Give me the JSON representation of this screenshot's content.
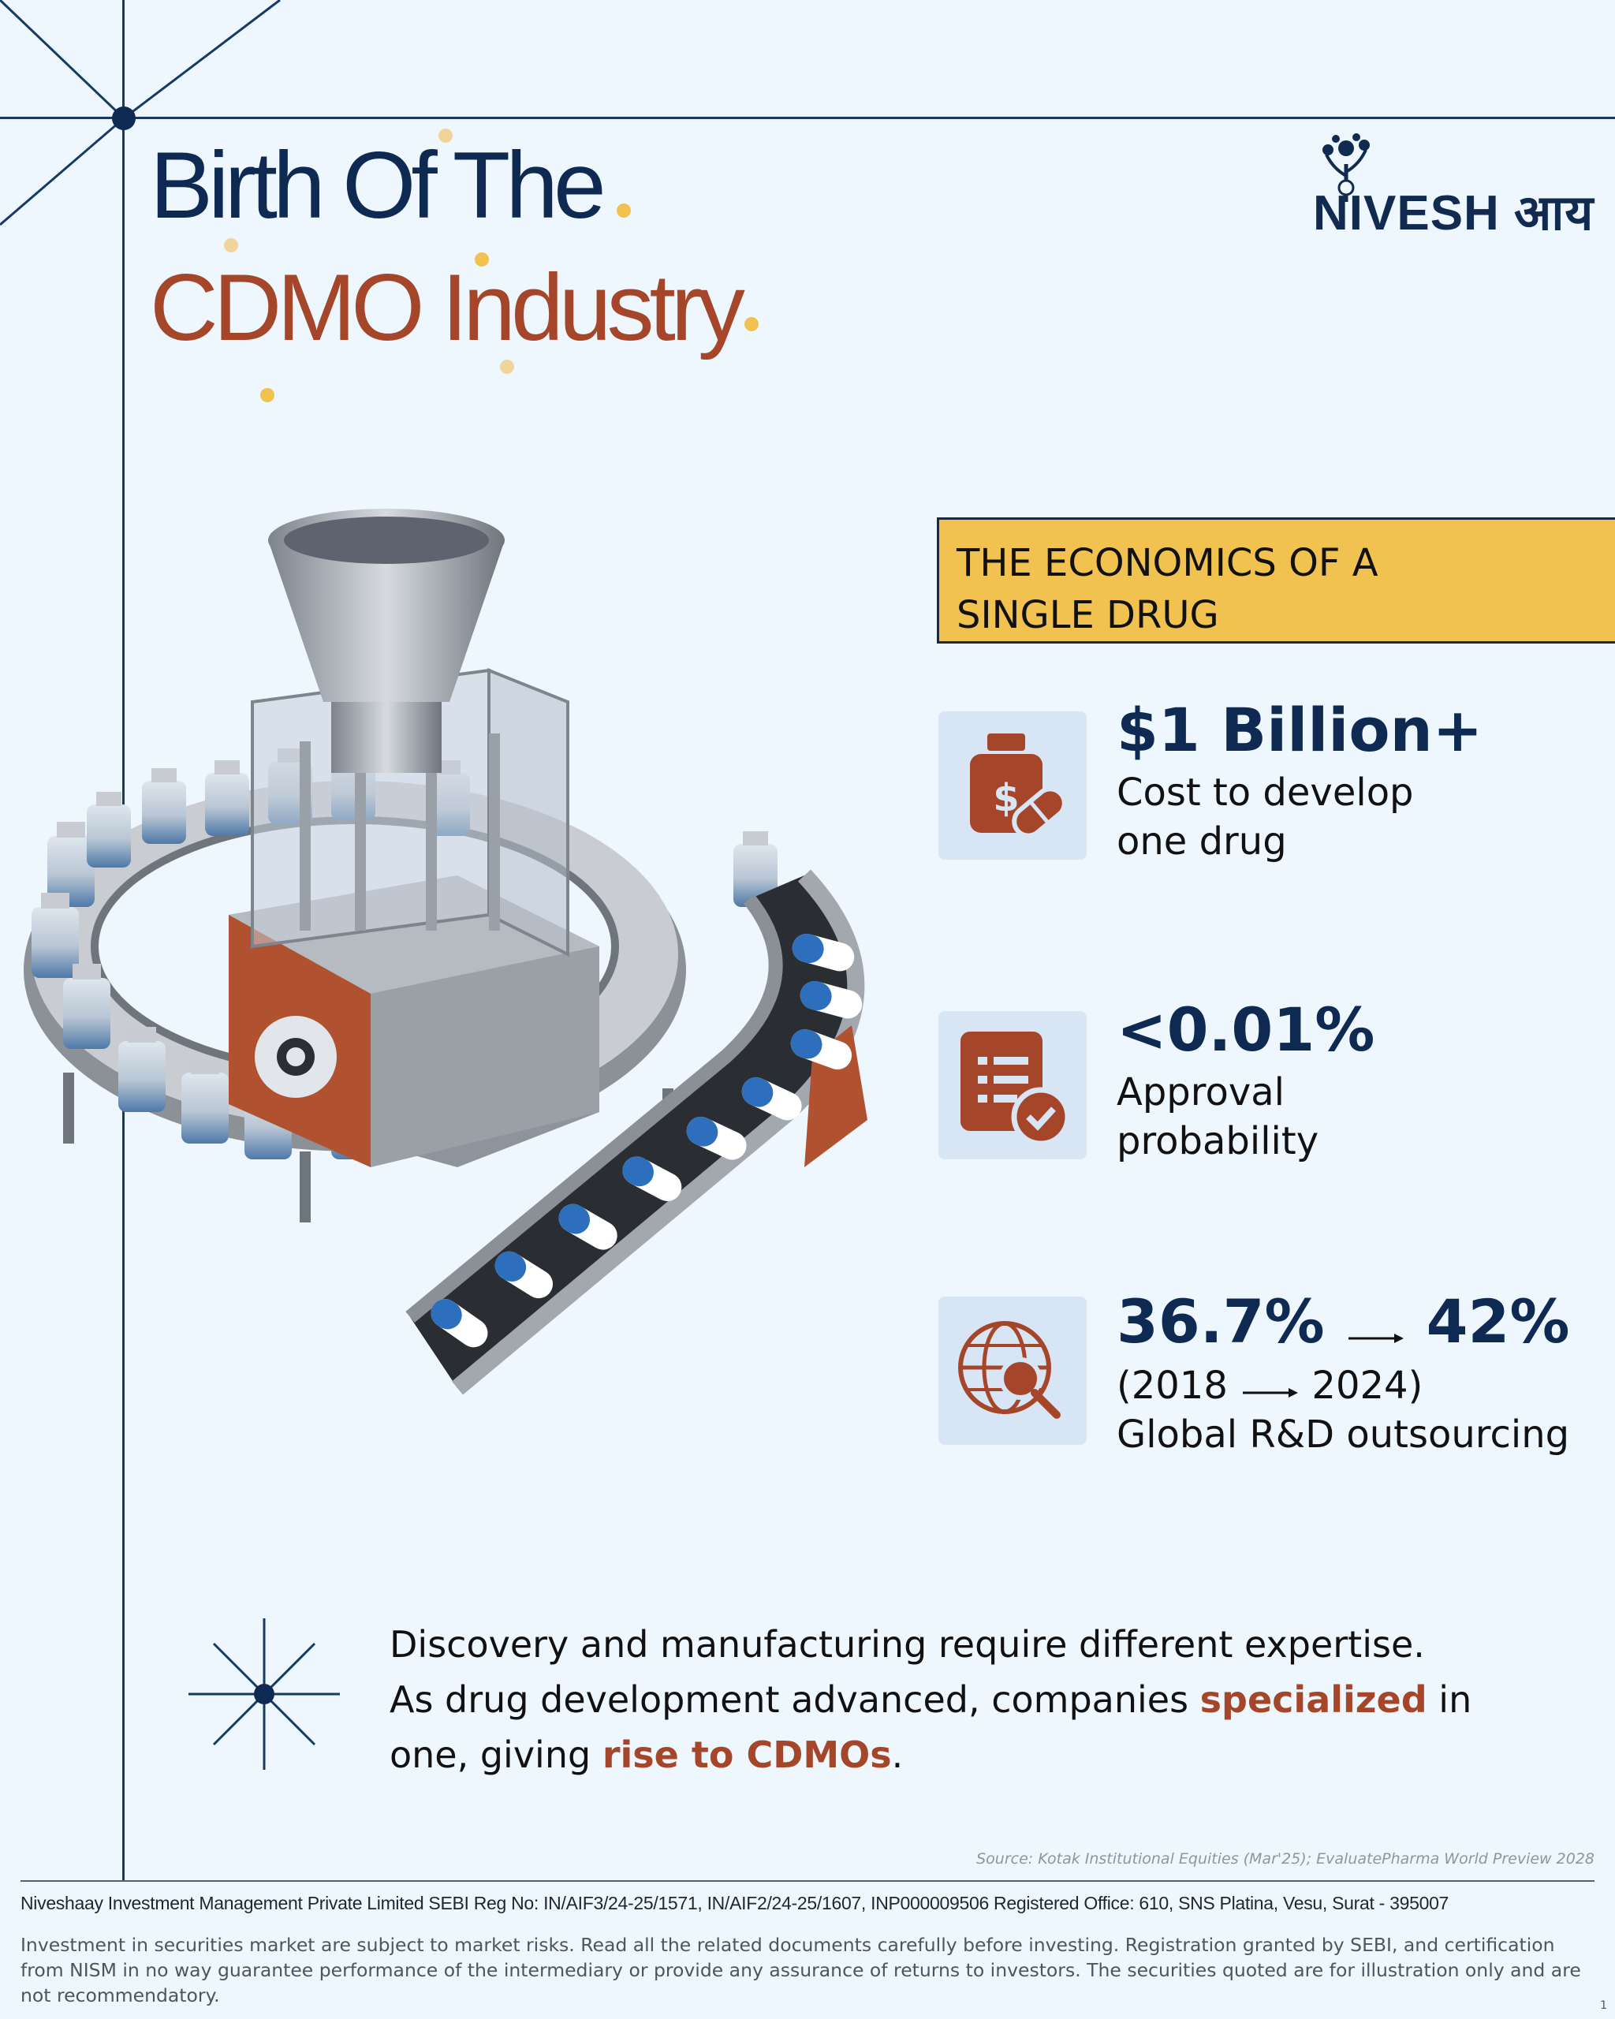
{
  "title": {
    "line1": "Birth Of The",
    "line2": "CDMO Industry"
  },
  "logo": {
    "icon": "tree-rupee-icon",
    "text": "NIVESH आय"
  },
  "economics": {
    "heading": "THE ECONOMICS OF A\nSINGLE DRUG",
    "stats": [
      {
        "icon": "medicine-bottle-dollar-icon",
        "big": "$1 Billion+",
        "line1": "Cost to develop",
        "line2": "one drug"
      },
      {
        "icon": "clipboard-check-icon",
        "big": "<0.01%",
        "line1": "Approval",
        "line2": "probability"
      },
      {
        "icon": "globe-search-icon",
        "big_from": "36.7%",
        "big_to": "42%",
        "year_from": "(2018",
        "year_to": "2024)",
        "line2": "Global R&D outsourcing"
      }
    ]
  },
  "summary": {
    "line1": "Discovery and manufacturing require different expertise.",
    "line2_pre": "As drug development advanced, companies ",
    "line2_hl": "specialized",
    "line2_post": " in",
    "line3_pre": "one, giving ",
    "line3_hl": "rise to CDMOs",
    "line3_post": "."
  },
  "source": "Source: Kotak Institutional Equities (Mar'25); EvaluatePharma World Preview 2028",
  "footer": {
    "registration": "Niveshaay Investment Management Private Limited   SEBI Reg No:  IN/AIF3/24-25/1571, IN/AIF2/24-25/1607, INP000009506   Registered Office: 610, SNS Platina, Vesu, Surat - 395007",
    "disclaimer": "Investment in securities market are subject to market risks. Read all the related documents carefully before investing. Registration granted by SEBI, and certification from NISM in no way guarantee performance of the intermediary or provide any assurance of returns to investors. The securities quoted are for illustration only and are not recommendatory.",
    "page": "1"
  },
  "colors": {
    "navy": "#0f2a52",
    "rust": "#a5462a",
    "gold": "#f2c250",
    "background": "#eef6fe"
  }
}
